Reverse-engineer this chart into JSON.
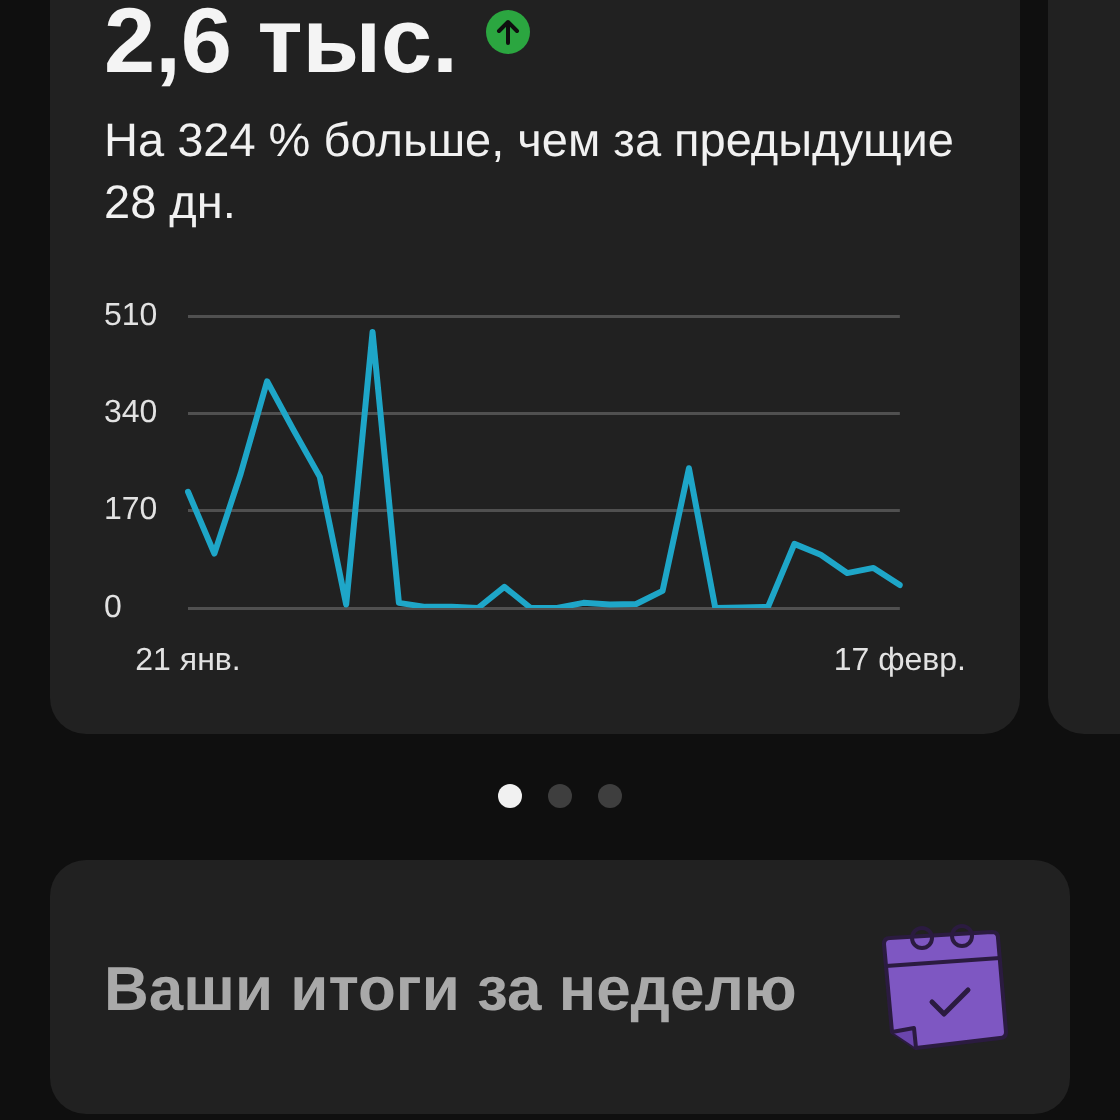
{
  "chart_data": {
    "type": "line",
    "title": "2,6 тыс.",
    "subtitle": "На 324 % больше, чем за предыдущие 28 дн.",
    "annotations": [
      "Ваши итоги за неделю"
    ],
    "categories": [
      "21 янв.",
      null,
      null,
      null,
      null,
      null,
      null,
      null,
      null,
      null,
      null,
      null,
      null,
      null,
      null,
      null,
      null,
      null,
      null,
      null,
      null,
      null,
      null,
      null,
      null,
      null,
      null,
      "17 февр."
    ],
    "series": [
      {
        "color": "#1ea6c8",
        "values": [
          203,
          95,
          235,
          396,
          311,
          229,
          6,
          482,
          9,
          2,
          2,
          0,
          37,
          0,
          0,
          9,
          6,
          7,
          30,
          244,
          0,
          1,
          2,
          112,
          93,
          61,
          70,
          40
        ]
      }
    ],
    "ylim": [
      0,
      510
    ],
    "yticks": [
      0,
      170,
      340,
      510
    ],
    "grid": "y",
    "marker": "none",
    "line_style": "solid"
  }
}
